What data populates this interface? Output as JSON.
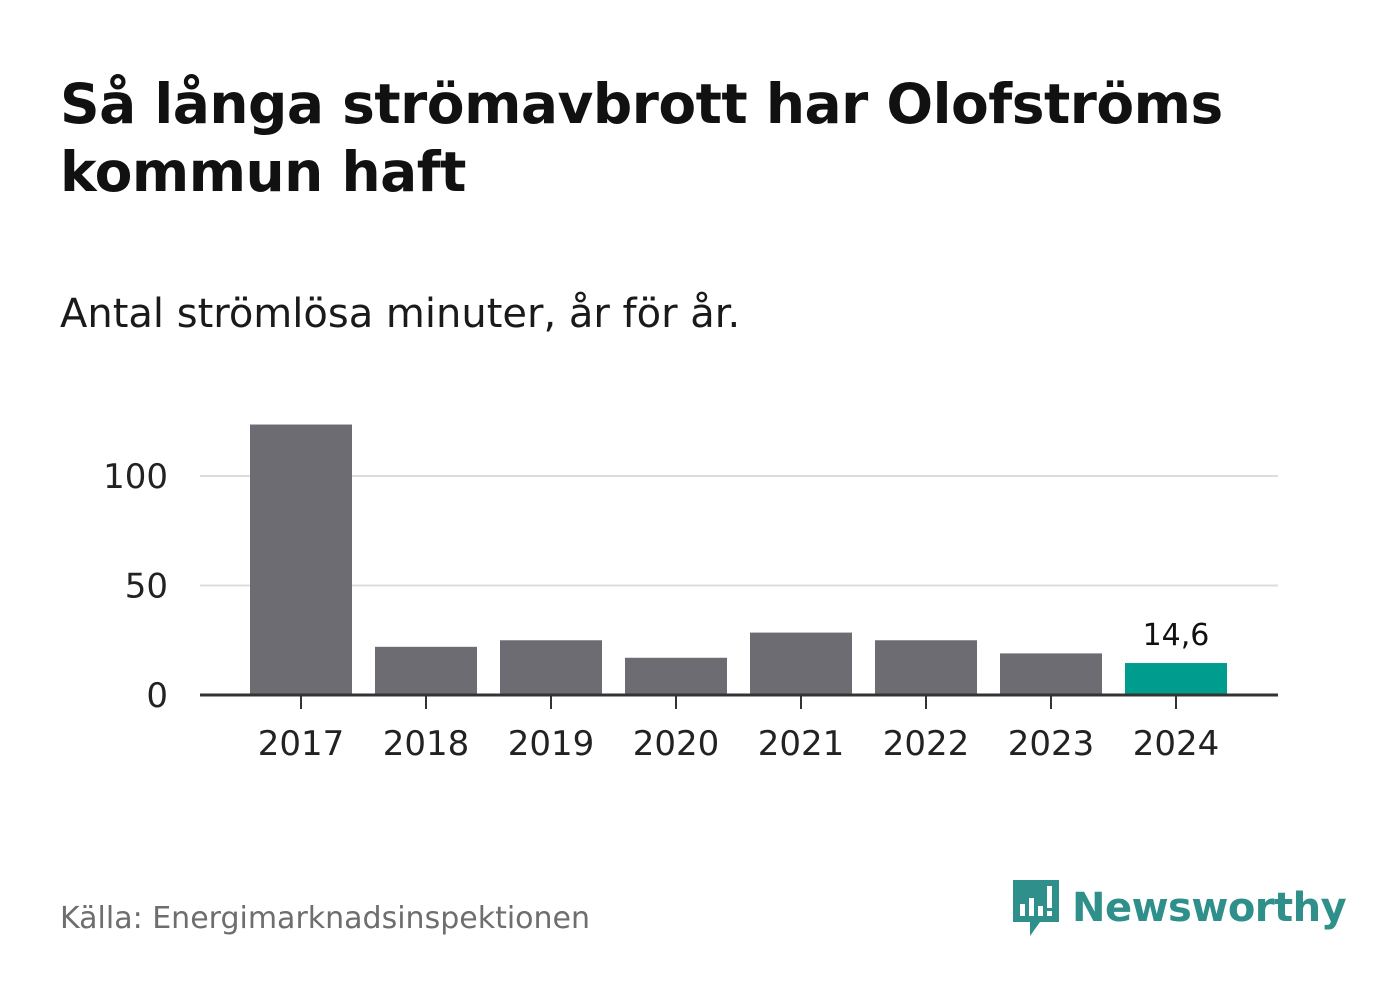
{
  "title": "Så långa strömavbrott har Olofströms kommun haft",
  "subtitle": "Antal strömlösa minuter, år för år.",
  "source": "Källa: Energimarknadsinspektionen",
  "brand": {
    "name": "Newsworthy",
    "icon": "newsworthy-logo-icon",
    "color": "#2f8f8a"
  },
  "colors": {
    "bar": "#6d6c73",
    "highlight": "#009d8e",
    "grid": "#dddddd",
    "axis": "#333333"
  },
  "chart_data": {
    "type": "bar",
    "title": "Så långa strömavbrott har Olofströms kommun haft",
    "subtitle": "Antal strömlösa minuter, år för år.",
    "xlabel": "",
    "ylabel": "",
    "categories": [
      "2017",
      "2018",
      "2019",
      "2020",
      "2021",
      "2022",
      "2023",
      "2024"
    ],
    "values": [
      123.5,
      22,
      25,
      17,
      28.5,
      25,
      19,
      14.6
    ],
    "highlight_index": 7,
    "data_labels": [
      {
        "index": 7,
        "text": "14,6"
      }
    ],
    "ylim": [
      0,
      125
    ],
    "yticks": [
      0,
      50,
      100
    ],
    "ytick_labels": [
      "0",
      "50",
      "100"
    ],
    "grid": true
  }
}
